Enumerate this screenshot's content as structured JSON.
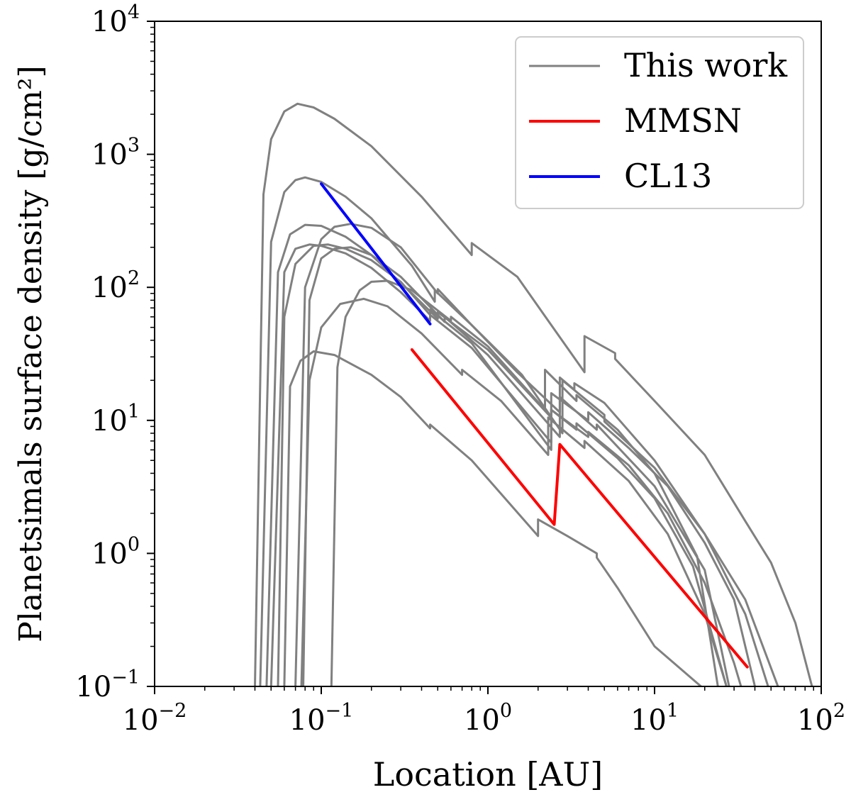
{
  "chart_data": {
    "type": "line",
    "title": "",
    "xlabel": "Location [AU]",
    "ylabel": "Planetsimals surface density [g/cm²]",
    "x_scale": "log",
    "y_scale": "log",
    "xlim": [
      0.01,
      100
    ],
    "ylim": [
      0.1,
      10000
    ],
    "x_ticks": [
      {
        "value": 0.01,
        "base": "10",
        "exp": "−2"
      },
      {
        "value": 0.1,
        "base": "10",
        "exp": "−1"
      },
      {
        "value": 1,
        "base": "10",
        "exp": "0"
      },
      {
        "value": 10,
        "base": "10",
        "exp": "1"
      },
      {
        "value": 100,
        "base": "10",
        "exp": "2"
      }
    ],
    "y_ticks": [
      {
        "value": 0.1,
        "base": "10",
        "exp": "−1"
      },
      {
        "value": 1,
        "base": "10",
        "exp": "0"
      },
      {
        "value": 10,
        "base": "10",
        "exp": "1"
      },
      {
        "value": 100,
        "base": "10",
        "exp": "2"
      },
      {
        "value": 1000,
        "base": "10",
        "exp": "3"
      },
      {
        "value": 10000,
        "base": "10",
        "exp": "4"
      }
    ],
    "legend": {
      "placement": "top-right",
      "entries": [
        {
          "label": "This work",
          "color": "#808080"
        },
        {
          "label": "MMSN",
          "color": "#ff0000"
        },
        {
          "label": "CL13",
          "color": "#0000ff"
        }
      ]
    },
    "series": [
      {
        "name": "This work",
        "color": "#808080",
        "x": [
          0.04,
          0.045,
          0.05,
          0.06,
          0.072,
          0.09,
          0.12,
          0.2,
          0.4,
          0.8,
          0.8,
          1.5,
          3.8,
          3.8,
          5.8,
          5.8,
          10,
          20,
          35,
          50,
          70,
          88
        ],
        "y": [
          0.1,
          500,
          1300,
          2100,
          2400,
          2250,
          1850,
          1150,
          480,
          175,
          215,
          120,
          23,
          43,
          32,
          29,
          14,
          5.5,
          1.75,
          0.85,
          0.3,
          0.1
        ]
      },
      {
        "name": "This work",
        "color": "#808080",
        "x": [
          0.043,
          0.05,
          0.06,
          0.07,
          0.08,
          0.1,
          0.14,
          0.2,
          0.35,
          0.48,
          0.48,
          0.8,
          1.6,
          2.8,
          2.8,
          5,
          5,
          10,
          20,
          35,
          55
        ],
        "y": [
          0.1,
          220,
          520,
          640,
          670,
          620,
          480,
          330,
          145,
          78,
          95,
          52,
          22,
          8,
          20,
          11,
          9.8,
          4.4,
          1.4,
          0.45,
          0.1
        ]
      },
      {
        "name": "This work",
        "color": "#808080",
        "x": [
          0.047,
          0.055,
          0.065,
          0.08,
          0.1,
          0.14,
          0.2,
          0.35,
          0.5,
          0.5,
          1,
          2.4,
          2.4,
          4,
          4,
          7,
          12,
          20,
          30,
          40
        ],
        "y": [
          0.1,
          130,
          250,
          295,
          290,
          240,
          175,
          90,
          58,
          65,
          34,
          10.5,
          16,
          10,
          11.5,
          6.2,
          3.2,
          1.2,
          0.45,
          0.1
        ]
      },
      {
        "name": "This work",
        "color": "#808080",
        "x": [
          0.05,
          0.06,
          0.07,
          0.085,
          0.1,
          0.14,
          0.2,
          0.3,
          0.45,
          0.45,
          0.8,
          2.4,
          2.4,
          3.4,
          3.4,
          6,
          10,
          17,
          27
        ],
        "y": [
          0.1,
          130,
          195,
          210,
          205,
          180,
          140,
          92,
          56,
          62,
          35,
          6.8,
          12,
          8.5,
          9.5,
          5.2,
          2.6,
          0.8,
          0.1
        ]
      },
      {
        "name": "This work",
        "color": "#808080",
        "x": [
          0.055,
          0.06,
          0.07,
          0.09,
          0.11,
          0.14,
          0.2,
          0.3,
          0.45,
          0.45,
          0.8,
          2.4,
          2.4,
          4,
          4,
          7,
          12,
          20,
          30,
          33
        ],
        "y": [
          0.1,
          60,
          150,
          205,
          210,
          195,
          160,
          110,
          62,
          68,
          38,
          6,
          12,
          7.5,
          8.2,
          4.6,
          2,
          0.6,
          0.15,
          0.1
        ]
      },
      {
        "name": "This work",
        "color": "#808080",
        "x": [
          0.07,
          0.08,
          0.1,
          0.12,
          0.15,
          0.2,
          0.3,
          0.5,
          0.5,
          0.8,
          1.5,
          2.7,
          2.7,
          3.3,
          3.3,
          5,
          10,
          20,
          35,
          48
        ],
        "y": [
          0.1,
          100,
          230,
          285,
          300,
          280,
          200,
          90,
          97,
          52,
          23,
          11.5,
          21,
          17,
          19,
          13.5,
          5,
          1.4,
          0.35,
          0.1
        ]
      },
      {
        "name": "This work",
        "color": "#808080",
        "x": [
          0.078,
          0.085,
          0.1,
          0.12,
          0.15,
          0.2,
          0.3,
          0.55,
          0.55,
          1,
          2.7,
          2.7,
          4.5,
          4.5,
          10,
          20,
          28
        ],
        "y": [
          0.1,
          80,
          165,
          195,
          200,
          175,
          120,
          55,
          60,
          31,
          7.5,
          15,
          8.5,
          9.3,
          3.2,
          0.75,
          0.1
        ]
      },
      {
        "name": "This work",
        "color": "#808080",
        "x": [
          0.076,
          0.085,
          0.1,
          0.13,
          0.18,
          0.25,
          0.4,
          0.7,
          0.7,
          1.2,
          2.3,
          2.3,
          3.8,
          3.8,
          7,
          12,
          20,
          27
        ],
        "y": [
          0.1,
          20,
          50,
          75,
          82,
          72,
          45,
          22,
          24,
          14,
          5.5,
          10.5,
          6.2,
          7,
          3.5,
          1.4,
          0.35,
          0.1
        ]
      },
      {
        "name": "This work",
        "color": "#808080",
        "x": [
          0.115,
          0.125,
          0.14,
          0.17,
          0.2,
          0.25,
          0.35,
          0.6,
          0.6,
          1,
          2.2,
          2.2,
          3.4,
          3.4,
          6,
          10,
          18,
          24
        ],
        "y": [
          0.1,
          25,
          60,
          95,
          110,
          112,
          95,
          56,
          60,
          36,
          12,
          24,
          14,
          15.5,
          8.5,
          4,
          0.95,
          0.1
        ]
      },
      {
        "name": "This work",
        "color": "#808080",
        "x": [
          0.06,
          0.065,
          0.075,
          0.09,
          0.12,
          0.2,
          0.3,
          0.45,
          0.45,
          0.8,
          2,
          2,
          3,
          4.5,
          4.5,
          6,
          10,
          19
        ],
        "y": [
          0.1,
          18,
          28,
          33,
          31,
          22,
          15,
          8.7,
          9.3,
          5,
          1.35,
          1.8,
          1.35,
          1,
          0.93,
          0.55,
          0.2,
          0.1
        ]
      },
      {
        "name": "MMSN",
        "color": "#ff0000",
        "x": [
          0.35,
          2.5,
          2.7,
          36
        ],
        "y": [
          34,
          1.65,
          6.6,
          0.14
        ]
      },
      {
        "name": "CL13",
        "color": "#0000ff",
        "x": [
          0.1,
          0.45
        ],
        "y": [
          600,
          53
        ]
      }
    ]
  }
}
